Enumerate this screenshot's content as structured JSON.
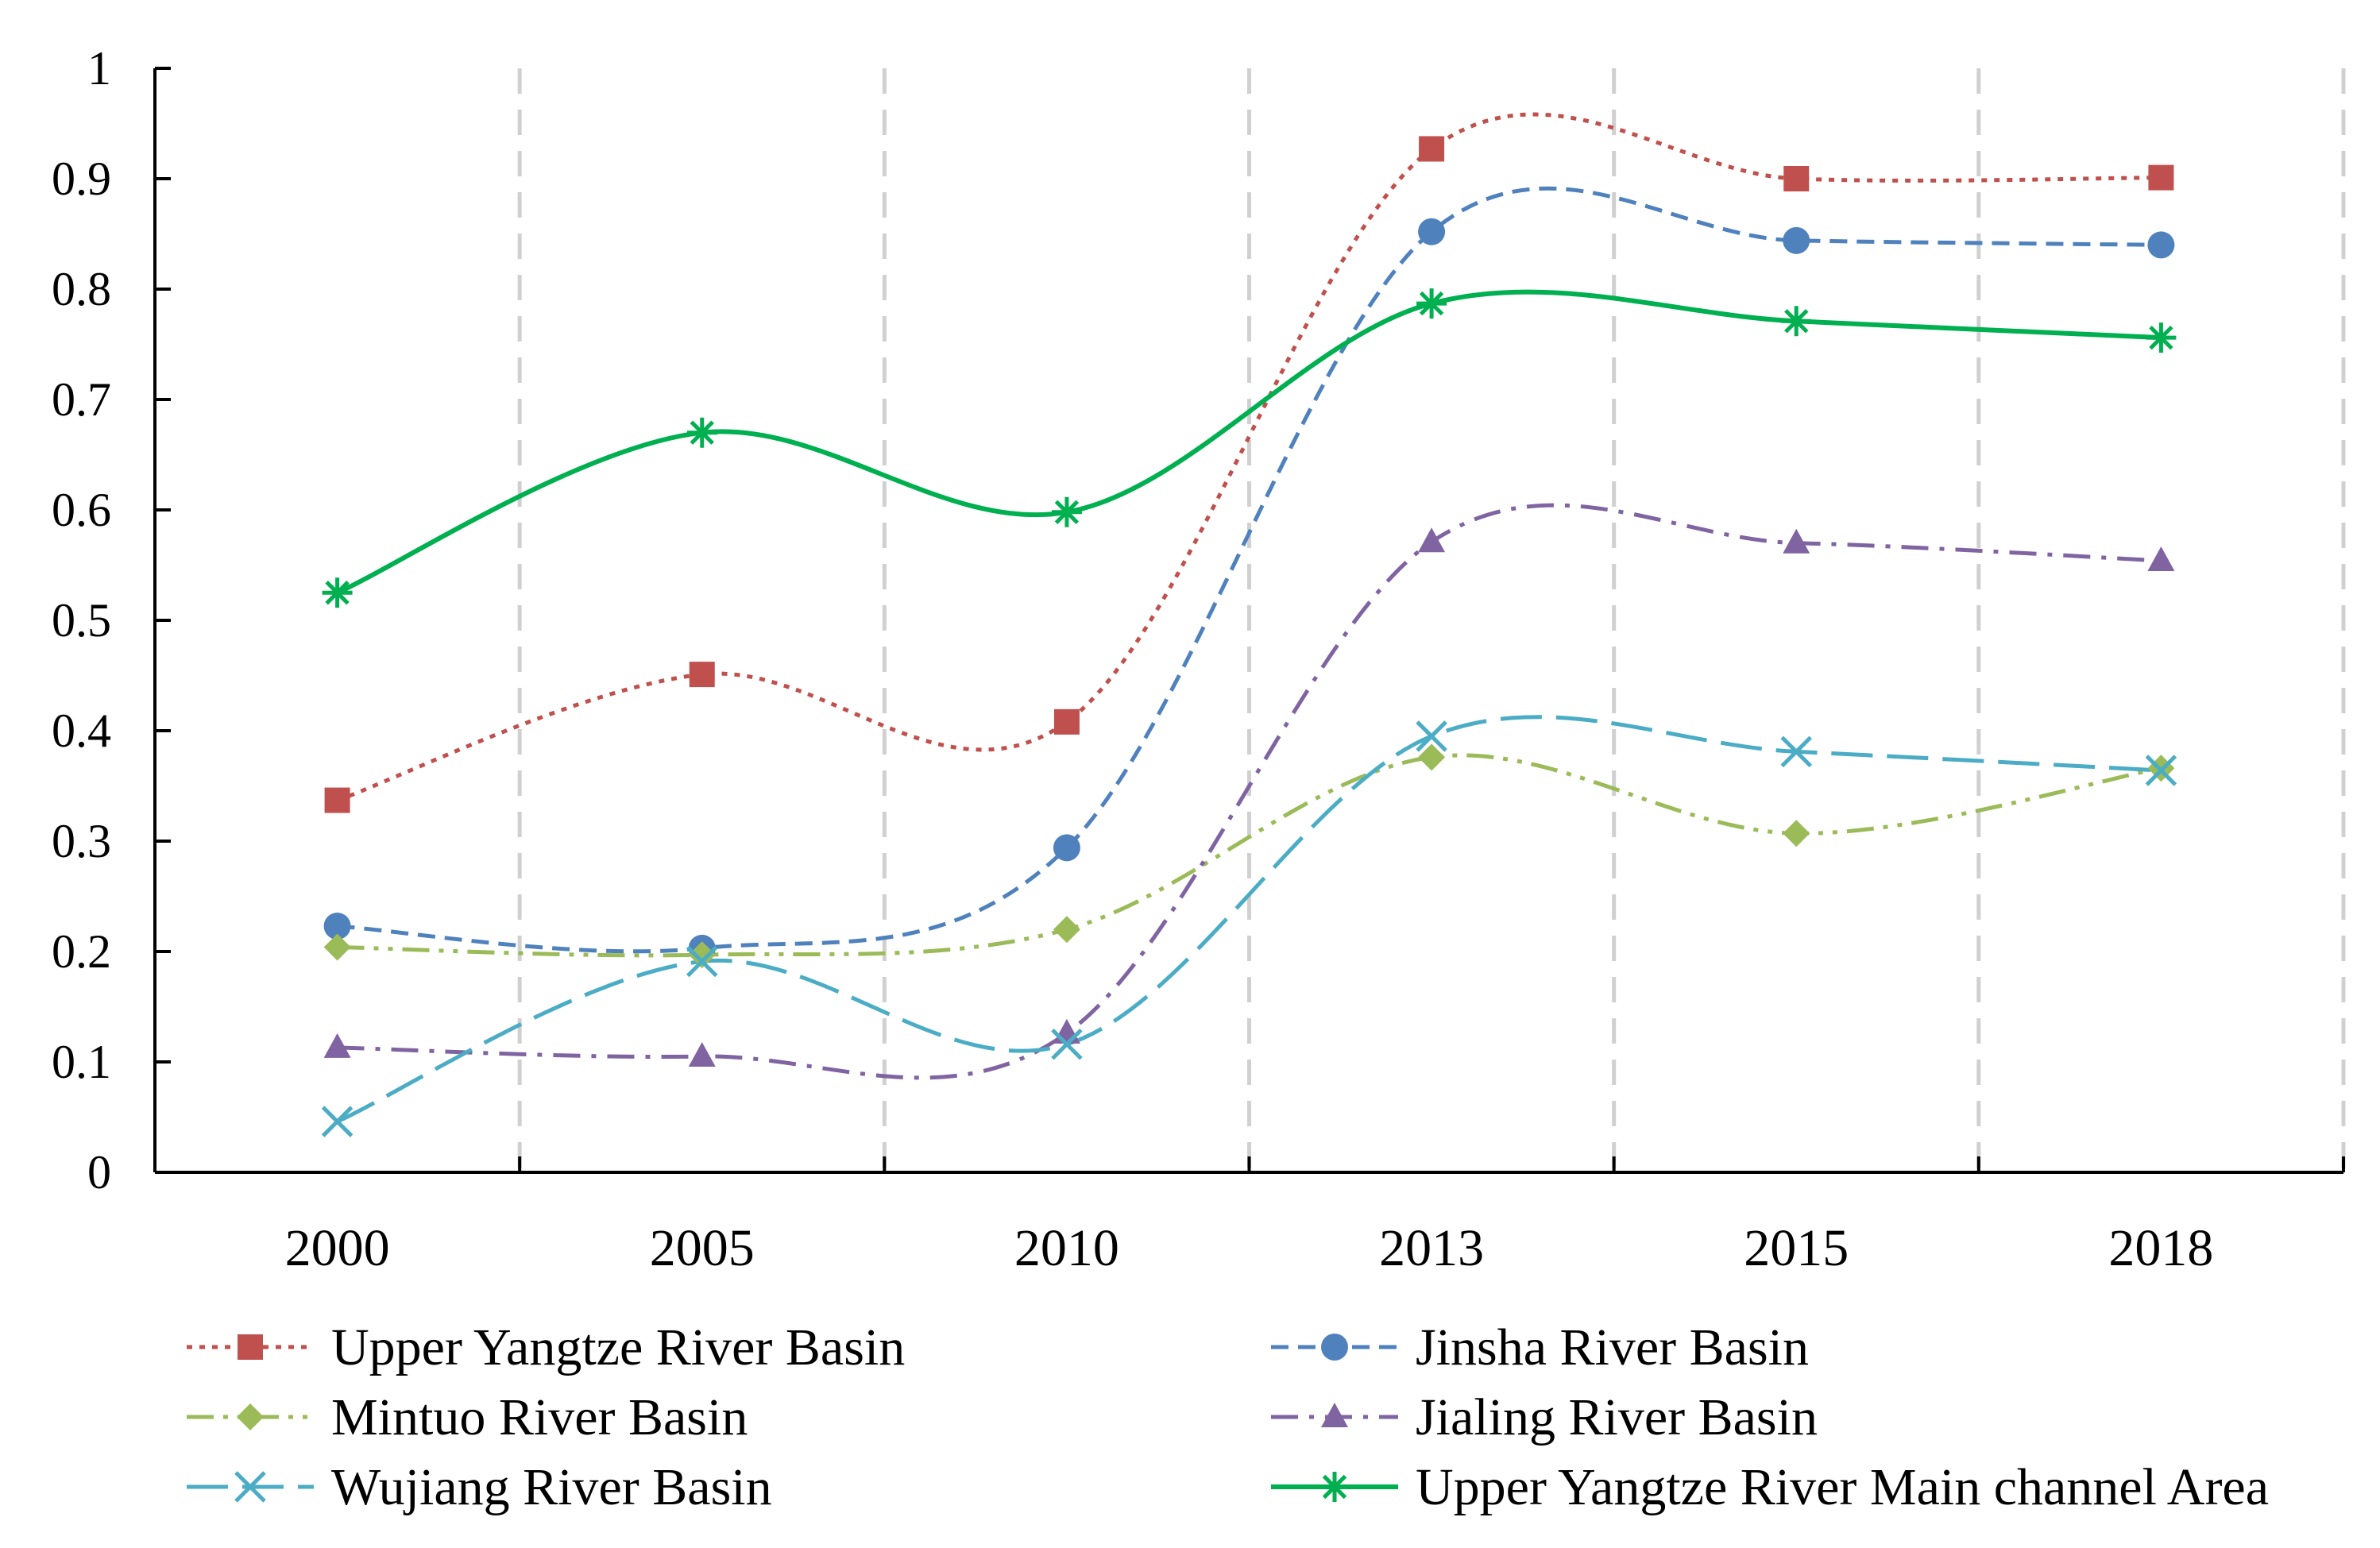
{
  "chart_data": {
    "type": "line",
    "smooth": true,
    "title": "",
    "xlabel": "",
    "ylabel": "",
    "categories": [
      "2000",
      "2005",
      "2010",
      "2013",
      "2015",
      "2018"
    ],
    "ylim": [
      0,
      1
    ],
    "yticks": [
      "0",
      "0.1",
      "0.2",
      "0.3",
      "0.4",
      "0.5",
      "0.6",
      "0.7",
      "0.8",
      "0.9",
      "1"
    ],
    "grid": "vertical-dashed",
    "legend_position": "bottom",
    "series": [
      {
        "name": "Upper Yangtze River Basin",
        "values": [
          0.337,
          0.451,
          0.408,
          0.927,
          0.9,
          0.901
        ],
        "color": "#c0504d",
        "dash": "dotted",
        "marker": "square"
      },
      {
        "name": "Jinsha River Basin",
        "values": [
          0.223,
          0.203,
          0.294,
          0.852,
          0.844,
          0.84
        ],
        "color": "#4f81bd",
        "dash": "dashed",
        "marker": "circle"
      },
      {
        "name": "Mintuo River Basin",
        "values": [
          0.204,
          0.197,
          0.22,
          0.376,
          0.307,
          0.366
        ],
        "color": "#9bbb59",
        "dash": "dash-dot-dot",
        "marker": "diamond"
      },
      {
        "name": "Jialing River Basin",
        "values": [
          0.113,
          0.105,
          0.126,
          0.571,
          0.57,
          0.554
        ],
        "color": "#8064a2",
        "dash": "dash-dot",
        "marker": "triangle"
      },
      {
        "name": "Wujiang River Basin",
        "values": [
          0.046,
          0.191,
          0.116,
          0.395,
          0.381,
          0.364
        ],
        "color": "#4bacc6",
        "dash": "long-dash",
        "marker": "x"
      },
      {
        "name": "Upper Yangtze River Main channel Area",
        "values": [
          0.525,
          0.67,
          0.598,
          0.787,
          0.771,
          0.756
        ],
        "color": "#00b050",
        "dash": "solid",
        "marker": "star"
      }
    ]
  }
}
